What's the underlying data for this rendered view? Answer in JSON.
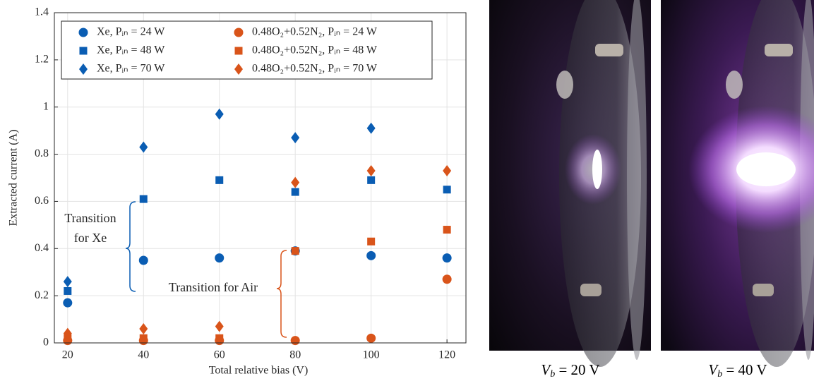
{
  "chart_data": {
    "type": "scatter",
    "xlabel": "Total relative bias (V)",
    "ylabel": "Extracted current (A)",
    "x": [
      20,
      40,
      60,
      80,
      100,
      120
    ],
    "xlim": [
      16.5,
      125
    ],
    "xticks": [
      20,
      40,
      60,
      80,
      100,
      120
    ],
    "ylim": [
      0,
      1.4
    ],
    "yticks": [
      0,
      0.2,
      0.4,
      0.6,
      0.8,
      1,
      1.2,
      1.4
    ],
    "grid": true,
    "legend": "top-left",
    "series": [
      {
        "name": "Xe, Pᵢₙ = 24 W",
        "color": "#0a5db3",
        "marker": "circle",
        "values": [
          0.17,
          0.35,
          0.36,
          0.39,
          0.37,
          0.36
        ]
      },
      {
        "name": "Xe, Pᵢₙ = 48 W",
        "color": "#0a5db3",
        "marker": "square",
        "values": [
          0.22,
          0.61,
          0.69,
          0.64,
          0.69,
          0.65
        ]
      },
      {
        "name": "Xe, Pᵢₙ = 70 W",
        "color": "#0a5db3",
        "marker": "diamond",
        "values": [
          0.26,
          0.83,
          0.97,
          0.87,
          0.91,
          null
        ]
      },
      {
        "name": "0.48O₂+0.52N₂, Pᵢₙ = 24 W",
        "color": "#d9541a",
        "marker": "circle",
        "values": [
          0.01,
          0.01,
          0.01,
          0.01,
          0.02,
          0.27
        ]
      },
      {
        "name": "0.48O₂+0.52N₂, Pᵢₙ = 48 W",
        "color": "#d9541a",
        "marker": "square",
        "values": [
          0.02,
          0.02,
          0.02,
          0.39,
          0.43,
          0.48
        ]
      },
      {
        "name": "0.48O₂+0.52N₂, Pᵢₙ = 70 W",
        "color": "#d9541a",
        "marker": "diamond",
        "values": [
          0.04,
          0.06,
          0.07,
          0.68,
          0.73,
          0.73
        ]
      }
    ],
    "annotations": [
      {
        "lines": [
          "Transition",
          "for Xe"
        ],
        "color": "#0a5db3"
      },
      {
        "lines": [
          "Transition for Air"
        ],
        "color": "#d9541a"
      }
    ]
  },
  "panels": [
    {
      "symbol": "V",
      "subscript": "b",
      "text": " = 20 V"
    },
    {
      "symbol": "V",
      "subscript": "b",
      "text": " = 40 V"
    }
  ]
}
